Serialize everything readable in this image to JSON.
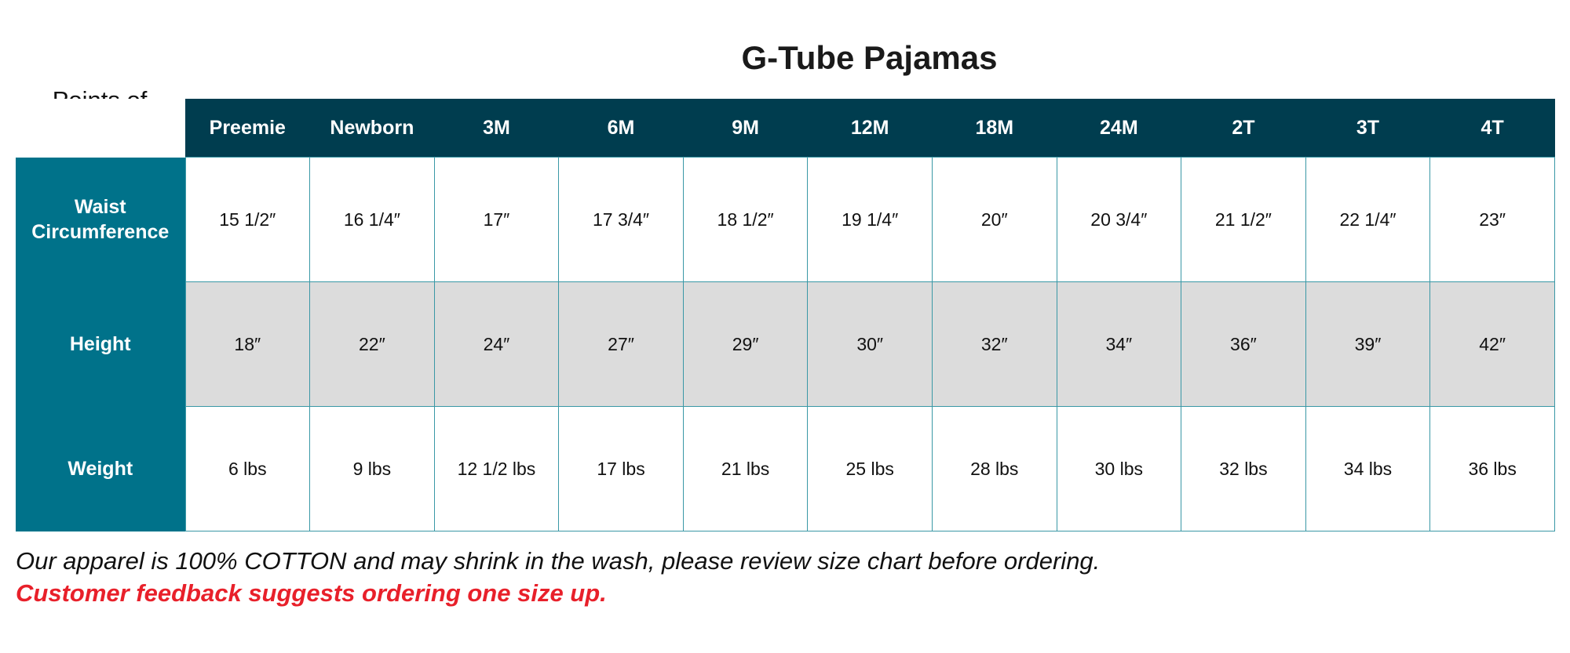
{
  "title": "G-Tube Pajamas",
  "corner_label": "Points of Measure (in)",
  "sizes": [
    "Preemie",
    "Newborn",
    "3M",
    "6M",
    "9M",
    "12M",
    "18M",
    "24M",
    "2T",
    "3T",
    "4T"
  ],
  "rows": [
    {
      "label": "Waist Circumference",
      "values": [
        "15 1/2″",
        "16 1/4″",
        "17″",
        "17 3/4″",
        "18 1/2″",
        "19 1/4″",
        "20″",
        "20 3/4″",
        "21 1/2″",
        "22 1/4″",
        "23″"
      ]
    },
    {
      "label": "Height",
      "values": [
        "18″",
        "22″",
        "24″",
        "27″",
        "29″",
        "30″",
        "32″",
        "34″",
        "36″",
        "39″",
        "42″"
      ]
    },
    {
      "label": "Weight",
      "values": [
        "6 lbs",
        "9 lbs",
        "12 1/2 lbs",
        "17 lbs",
        "21 lbs",
        "25 lbs",
        "28 lbs",
        "30 lbs",
        "32 lbs",
        "34 lbs",
        "36 lbs"
      ]
    }
  ],
  "note": "Our apparel is 100% COTTON and may shrink in the wash, please review size chart before ordering.",
  "warning": "Customer feedback suggests ordering one size up.",
  "colors": {
    "header": "#003d4f",
    "label_column": "#00728a",
    "grey_row": "#dcdcdc",
    "warning": "#e8202a"
  }
}
